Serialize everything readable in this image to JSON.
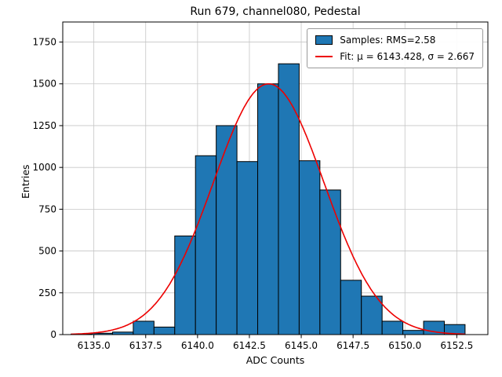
{
  "chart_data": {
    "type": "bar",
    "subtype": "histogram",
    "title": "Run 679, channel080, Pedestal",
    "xlabel": "ADC Counts",
    "ylabel": "Entries",
    "xlim": [
      6133.5,
      6154.0
    ],
    "ylim": [
      0,
      1870
    ],
    "xticks": [
      6135.0,
      6137.5,
      6140.0,
      6142.5,
      6145.0,
      6147.5,
      6150.0,
      6152.5
    ],
    "xtick_labels": [
      "6135.0",
      "6137.5",
      "6140.0",
      "6142.5",
      "6145.0",
      "6147.5",
      "6150.0",
      "6152.5"
    ],
    "yticks": [
      0,
      250,
      500,
      750,
      1000,
      1250,
      1500,
      1750
    ],
    "ytick_labels": [
      "0",
      "250",
      "500",
      "750",
      "1000",
      "1250",
      "1500",
      "1750"
    ],
    "grid": true,
    "bar_color": "#1f77b4",
    "bar_edge_color": "#000000",
    "fit_color": "#ed0000",
    "grid_color": "#c6c6c6",
    "bins": {
      "start": 6133.9,
      "width": 1.0,
      "counts": [
        3,
        8,
        15,
        80,
        45,
        590,
        1070,
        1250,
        1035,
        1500,
        1620,
        1040,
        865,
        325,
        230,
        80,
        25,
        80,
        60
      ]
    },
    "fit": {
      "type": "gaussian",
      "amplitude": 1500,
      "mu": 6143.428,
      "sigma": 2.667
    },
    "legend": {
      "position": "upper right",
      "entries": [
        {
          "type": "patch",
          "label": "Samples: RMS=2.58"
        },
        {
          "type": "line",
          "label": "Fit: μ = 6143.428, σ = 2.667"
        }
      ]
    }
  }
}
